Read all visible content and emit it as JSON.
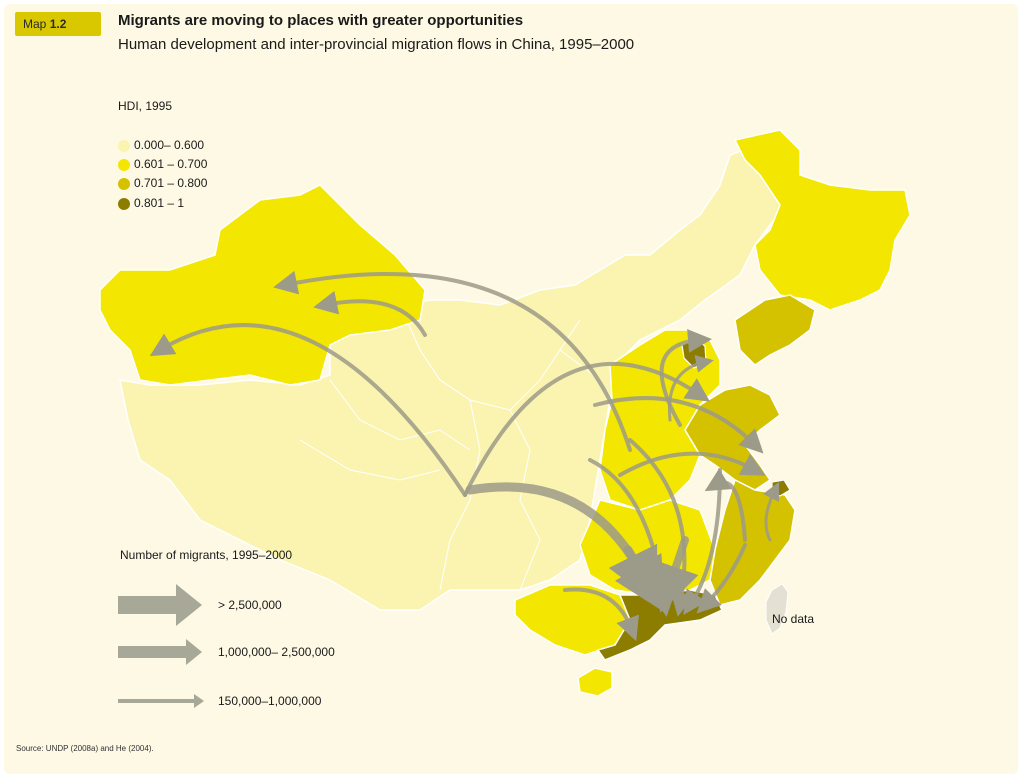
{
  "header": {
    "badge_prefix": "Map",
    "badge_number": "1.2",
    "title": "Migrants are moving to places with greater opportunities",
    "subtitle": "Human development and inter-provincial migration flows in China, 1995–2000"
  },
  "hdi_legend": {
    "title": "HDI, 1995",
    "items": [
      {
        "label": "0.000– 0.600",
        "color": "#fbf4b0"
      },
      {
        "label": "0.601 – 0.700",
        "color": "#f3e600"
      },
      {
        "label": "0.701 – 0.800",
        "color": "#d4c200"
      },
      {
        "label": "0.801 – 1",
        "color": "#8c7d00"
      }
    ]
  },
  "migration_legend": {
    "title": "Number of migrants, 1995–2000",
    "items": [
      {
        "label": "> 2,500,000"
      },
      {
        "label": "1,000,000– 2,500,000"
      },
      {
        "label": "150,000–1,000,000"
      }
    ],
    "arrow_color": "#a8a898"
  },
  "map_labels": {
    "no_data": "No data"
  },
  "source": "Source:  UNDP (2008a) and He (2004)."
}
